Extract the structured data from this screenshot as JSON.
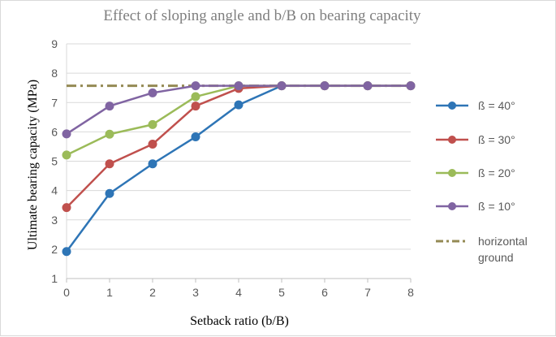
{
  "chart_data": {
    "type": "line",
    "title": "Effect of sloping angle and b/B on bearing capacity",
    "xlabel": "Setback ratio (b/B)",
    "ylabel": "Ultimate bearing capacity (MPa)",
    "x": [
      0,
      1,
      2,
      3,
      4,
      5,
      6,
      7,
      8
    ],
    "xlim": [
      0,
      8
    ],
    "ylim": [
      1,
      9
    ],
    "x_ticks": [
      "0",
      "1",
      "2",
      "3",
      "4",
      "5",
      "6",
      "7",
      "8"
    ],
    "y_ticks": [
      "1",
      "2",
      "3",
      "4",
      "5",
      "6",
      "7",
      "8",
      "9"
    ],
    "grid": "horizontal",
    "legend_position": "right",
    "series": [
      {
        "name": "ß = 40°",
        "color": "#2e75b6",
        "style": "line-markers",
        "values": [
          1.92,
          3.9,
          4.91,
          5.83,
          6.92,
          7.57,
          7.57,
          7.57,
          7.57
        ]
      },
      {
        "name": "ß = 30°",
        "color": "#c0504d",
        "style": "line-markers",
        "values": [
          3.42,
          4.91,
          5.58,
          6.88,
          7.48,
          7.57,
          7.57,
          7.57,
          7.57
        ]
      },
      {
        "name": "ß = 20°",
        "color": "#9bbb59",
        "style": "line-markers",
        "values": [
          5.21,
          5.92,
          6.25,
          7.2,
          7.57,
          7.57,
          7.57,
          7.57,
          7.57
        ]
      },
      {
        "name": "ß = 10°",
        "color": "#8064a2",
        "style": "line-markers",
        "values": [
          5.93,
          6.88,
          7.33,
          7.57,
          7.57,
          7.57,
          7.57,
          7.57,
          7.57
        ]
      },
      {
        "name": "horizontal ground",
        "color": "#948a54",
        "style": "dash-dot",
        "values": [
          7.57,
          7.57,
          7.57,
          7.57,
          7.57,
          7.57,
          7.57,
          7.57,
          7.57
        ]
      }
    ]
  }
}
